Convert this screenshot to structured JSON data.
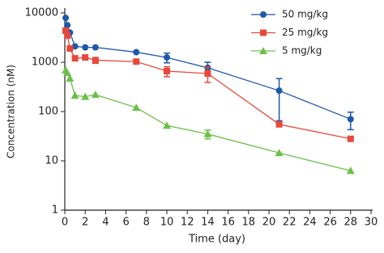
{
  "chart_data": {
    "type": "line",
    "xlabel": "Time (day)",
    "ylabel": "Concentration (nM)",
    "x": [
      0.083,
      0.25,
      0.5,
      1,
      2,
      3,
      7,
      10,
      14,
      21,
      28
    ],
    "xlim": [
      0,
      30
    ],
    "xticks": [
      0,
      2,
      4,
      6,
      8,
      10,
      12,
      14,
      16,
      18,
      20,
      22,
      24,
      26,
      28,
      30
    ],
    "ylim": [
      1,
      10000
    ],
    "yticks": [
      1,
      10,
      100,
      1000,
      10000
    ],
    "yscale": "log",
    "legend": "upper right",
    "series": [
      {
        "name": "50 mg/kg",
        "color": "#1f58a8",
        "marker": "circle",
        "values": [
          7950,
          5650,
          4000,
          2100,
          2000,
          2000,
          1600,
          1250,
          770,
          265,
          70
        ],
        "errors": [
          null,
          null,
          null,
          null,
          null,
          null,
          null,
          280,
          230,
          200,
          27
        ]
      },
      {
        "name": "25 mg/kg",
        "color": "#e8483a",
        "marker": "square",
        "values": [
          4360,
          3460,
          1900,
          1200,
          1250,
          1100,
          1030,
          660,
          590,
          55,
          28
        ],
        "errors": [
          null,
          null,
          null,
          null,
          null,
          150,
          null,
          150,
          200,
          null,
          null
        ]
      },
      {
        "name": "5 mg/kg",
        "color": "#6cc04a",
        "marker": "triangle",
        "values": [
          690,
          610,
          470,
          212,
          200,
          220,
          120,
          52,
          35,
          14.5,
          6.3
        ],
        "errors": [
          null,
          null,
          null,
          null,
          null,
          null,
          null,
          null,
          7,
          null,
          null
        ]
      }
    ]
  }
}
